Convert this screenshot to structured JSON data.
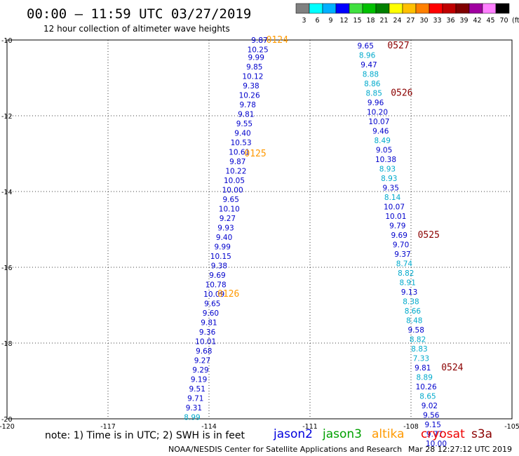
{
  "header": {
    "title": "00:00 – 11:59 UTC 03/27/2019",
    "subtitle": "12 hour collection of altimeter wave heights"
  },
  "colorbar": {
    "colors": [
      "#808080",
      "#00ffff",
      "#00b0ff",
      "#0000ff",
      "#40e040",
      "#00c000",
      "#008000",
      "#ffff00",
      "#ffc000",
      "#ff8000",
      "#ff0000",
      "#c00000",
      "#800000",
      "#a000a0",
      "#ff80ff",
      "#000000"
    ],
    "labels": [
      "3",
      "6",
      "9",
      "12",
      "15",
      "18",
      "21",
      "24",
      "27",
      "30",
      "33",
      "36",
      "39",
      "42",
      "45",
      "70"
    ],
    "unit": "(ft)"
  },
  "note": "note:  1) Time is in UTC; 2) SWH is in feet",
  "legend": [
    {
      "label": "jason2",
      "color": "#0000dd"
    },
    {
      "label": "jason3",
      "color": "#00a000"
    },
    {
      "label": "altika",
      "color": "#ff9900"
    },
    {
      "label": "cryosat",
      "color": "#ee0000"
    },
    {
      "label": "s3a",
      "color": "#8b0000"
    }
  ],
  "footer": {
    "credit": "NOAA/NESDIS Center for Satellite Applications and Research",
    "timestamp": "Mar 28 12:27:12 UTC 2019"
  },
  "chart_data": {
    "type": "scatter",
    "title": "00:00 – 11:59 UTC 03/27/2019",
    "subtitle": "12 hour collection of altimeter wave heights",
    "xlabel": "",
    "ylabel": "",
    "xlim": [
      -120,
      -105
    ],
    "ylim": [
      -20,
      -10
    ],
    "grid": true,
    "x_ticks": [
      "-120",
      "-117",
      "-114",
      "-111",
      "-108",
      "-105"
    ],
    "y_ticks": [
      "-10",
      "-12",
      "-14",
      "-16",
      "-18",
      "-20"
    ],
    "series": [
      {
        "name": "altika",
        "points": [
          {
            "x": -112.5,
            "y": -10.0,
            "v": "9.87",
            "c": "#0000cc"
          },
          {
            "x": -112.55,
            "y": -10.25,
            "v": "10.25",
            "c": "#0000cc"
          },
          {
            "x": -112.6,
            "y": -10.45,
            "v": "9.99",
            "c": "#0000cc"
          },
          {
            "x": -112.65,
            "y": -10.7,
            "v": "9.85",
            "c": "#0000cc"
          },
          {
            "x": -112.7,
            "y": -10.95,
            "v": "10.12",
            "c": "#0000cc"
          },
          {
            "x": -112.75,
            "y": -11.2,
            "v": "9.38",
            "c": "#0000cc"
          },
          {
            "x": -112.8,
            "y": -11.45,
            "v": "10.26",
            "c": "#0000cc"
          },
          {
            "x": -112.85,
            "y": -11.7,
            "v": "9.78",
            "c": "#0000cc"
          },
          {
            "x": -112.9,
            "y": -11.95,
            "v": "9.81",
            "c": "#0000cc"
          },
          {
            "x": -112.95,
            "y": -12.2,
            "v": "9.55",
            "c": "#0000cc"
          },
          {
            "x": -113.0,
            "y": -12.45,
            "v": "9.40",
            "c": "#0000cc"
          },
          {
            "x": -113.05,
            "y": -12.7,
            "v": "10.53",
            "c": "#0000cc"
          },
          {
            "x": -113.1,
            "y": -12.95,
            "v": "10.61",
            "c": "#0000cc"
          },
          {
            "x": -113.15,
            "y": -13.2,
            "v": "9.87",
            "c": "#0000cc"
          },
          {
            "x": -113.2,
            "y": -13.45,
            "v": "10.22",
            "c": "#0000cc"
          },
          {
            "x": -113.25,
            "y": -13.7,
            "v": "10.05",
            "c": "#0000cc"
          },
          {
            "x": -113.3,
            "y": -13.95,
            "v": "10.00",
            "c": "#0000cc"
          },
          {
            "x": -113.35,
            "y": -14.2,
            "v": "9.65",
            "c": "#0000cc"
          },
          {
            "x": -113.4,
            "y": -14.45,
            "v": "10.10",
            "c": "#0000cc"
          },
          {
            "x": -113.45,
            "y": -14.7,
            "v": "9.27",
            "c": "#0000cc"
          },
          {
            "x": -113.5,
            "y": -14.95,
            "v": "9.93",
            "c": "#0000cc"
          },
          {
            "x": -113.55,
            "y": -15.2,
            "v": "9.40",
            "c": "#0000cc"
          },
          {
            "x": -113.6,
            "y": -15.45,
            "v": "9.99",
            "c": "#0000cc"
          },
          {
            "x": -113.65,
            "y": -15.7,
            "v": "10.15",
            "c": "#0000cc"
          },
          {
            "x": -113.7,
            "y": -15.95,
            "v": "9.38",
            "c": "#0000cc"
          },
          {
            "x": -113.75,
            "y": -16.2,
            "v": "9.69",
            "c": "#0000cc"
          },
          {
            "x": -113.8,
            "y": -16.45,
            "v": "10.78",
            "c": "#0000cc"
          },
          {
            "x": -113.85,
            "y": -16.7,
            "v": "10.09",
            "c": "#0000cc"
          },
          {
            "x": -113.9,
            "y": -16.95,
            "v": "9.65",
            "c": "#0000cc"
          },
          {
            "x": -113.95,
            "y": -17.2,
            "v": "9.60",
            "c": "#0000cc"
          },
          {
            "x": -114.0,
            "y": -17.45,
            "v": "9.81",
            "c": "#0000cc"
          },
          {
            "x": -114.05,
            "y": -17.7,
            "v": "9.36",
            "c": "#0000cc"
          },
          {
            "x": -114.1,
            "y": -17.95,
            "v": "10.01",
            "c": "#0000cc"
          },
          {
            "x": -114.15,
            "y": -18.2,
            "v": "9.68",
            "c": "#0000cc"
          },
          {
            "x": -114.2,
            "y": -18.45,
            "v": "9.27",
            "c": "#0000cc"
          },
          {
            "x": -114.25,
            "y": -18.7,
            "v": "9.29",
            "c": "#0000cc"
          },
          {
            "x": -114.3,
            "y": -18.95,
            "v": "9.19",
            "c": "#0000cc"
          },
          {
            "x": -114.35,
            "y": -19.2,
            "v": "9.51",
            "c": "#0000cc"
          },
          {
            "x": -114.4,
            "y": -19.45,
            "v": "9.71",
            "c": "#0000cc"
          },
          {
            "x": -114.45,
            "y": -19.7,
            "v": "9.31",
            "c": "#0000cc"
          },
          {
            "x": -114.5,
            "y": -19.95,
            "v": "8.99",
            "c": "#00aacc"
          }
        ],
        "passes": [
          {
            "x": -112.3,
            "y": -10.0,
            "label": "0124",
            "c": "#ff9900"
          },
          {
            "x": -112.95,
            "y": -13.0,
            "label": "0125",
            "c": "#ff9900"
          },
          {
            "x": -113.75,
            "y": -16.7,
            "label": "0126",
            "c": "#ff9900"
          }
        ]
      },
      {
        "name": "s3a",
        "points": [
          {
            "x": -109.35,
            "y": -10.15,
            "v": "9.65",
            "c": "#0000cc"
          },
          {
            "x": -109.3,
            "y": -10.4,
            "v": "8.96",
            "c": "#00aacc"
          },
          {
            "x": -109.25,
            "y": -10.65,
            "v": "9.47",
            "c": "#0000cc"
          },
          {
            "x": -109.2,
            "y": -10.9,
            "v": "8.88",
            "c": "#00aacc"
          },
          {
            "x": -109.15,
            "y": -11.15,
            "v": "8.86",
            "c": "#00aacc"
          },
          {
            "x": -109.1,
            "y": -11.4,
            "v": "8.85",
            "c": "#00aacc"
          },
          {
            "x": -109.05,
            "y": -11.65,
            "v": "9.96",
            "c": "#0000cc"
          },
          {
            "x": -109.0,
            "y": -11.9,
            "v": "10.20",
            "c": "#0000cc"
          },
          {
            "x": -108.95,
            "y": -12.15,
            "v": "10.07",
            "c": "#0000cc"
          },
          {
            "x": -108.9,
            "y": -12.4,
            "v": "9.46",
            "c": "#0000cc"
          },
          {
            "x": -108.85,
            "y": -12.65,
            "v": "8.49",
            "c": "#00aacc"
          },
          {
            "x": -108.8,
            "y": -12.9,
            "v": "9.05",
            "c": "#0000cc"
          },
          {
            "x": -108.75,
            "y": -13.15,
            "v": "10.38",
            "c": "#0000cc"
          },
          {
            "x": -108.7,
            "y": -13.4,
            "v": "8.93",
            "c": "#00aacc"
          },
          {
            "x": -108.65,
            "y": -13.65,
            "v": "8.93",
            "c": "#00aacc"
          },
          {
            "x": -108.6,
            "y": -13.9,
            "v": "9.35",
            "c": "#0000cc"
          },
          {
            "x": -108.55,
            "y": -14.15,
            "v": "8.14",
            "c": "#00aacc"
          },
          {
            "x": -108.5,
            "y": -14.4,
            "v": "10.07",
            "c": "#0000cc"
          },
          {
            "x": -108.45,
            "y": -14.65,
            "v": "10.01",
            "c": "#0000cc"
          },
          {
            "x": -108.4,
            "y": -14.9,
            "v": "9.79",
            "c": "#0000cc"
          },
          {
            "x": -108.35,
            "y": -15.15,
            "v": "9.69",
            "c": "#0000cc"
          },
          {
            "x": -108.3,
            "y": -15.4,
            "v": "9.70",
            "c": "#0000cc"
          },
          {
            "x": -108.25,
            "y": -15.65,
            "v": "9.37",
            "c": "#0000cc"
          },
          {
            "x": -108.2,
            "y": -15.9,
            "v": "8.74",
            "c": "#00aacc"
          },
          {
            "x": -108.15,
            "y": -16.15,
            "v": "8.82",
            "c": "#00aacc"
          },
          {
            "x": -108.1,
            "y": -16.4,
            "v": "8.91",
            "c": "#00aacc"
          },
          {
            "x": -108.05,
            "y": -16.65,
            "v": "9.13",
            "c": "#0000cc"
          },
          {
            "x": -108.0,
            "y": -16.9,
            "v": "8.38",
            "c": "#00aacc"
          },
          {
            "x": -107.95,
            "y": -17.15,
            "v": "8.66",
            "c": "#00aacc"
          },
          {
            "x": -107.9,
            "y": -17.4,
            "v": "8.48",
            "c": "#00aacc"
          },
          {
            "x": -107.85,
            "y": -17.65,
            "v": "9.58",
            "c": "#0000cc"
          },
          {
            "x": -107.8,
            "y": -17.9,
            "v": "8.82",
            "c": "#00aacc"
          },
          {
            "x": -107.75,
            "y": -18.15,
            "v": "8.83",
            "c": "#00aacc"
          },
          {
            "x": -107.7,
            "y": -18.4,
            "v": "7.33",
            "c": "#00aacc"
          },
          {
            "x": -107.65,
            "y": -18.65,
            "v": "9.81",
            "c": "#0000cc"
          },
          {
            "x": -107.6,
            "y": -18.9,
            "v": "8.89",
            "c": "#00aacc"
          },
          {
            "x": -107.55,
            "y": -19.15,
            "v": "10.26",
            "c": "#0000cc"
          },
          {
            "x": -107.5,
            "y": -19.4,
            "v": "8.65",
            "c": "#00aacc"
          },
          {
            "x": -107.45,
            "y": -19.65,
            "v": "9.02",
            "c": "#0000cc"
          },
          {
            "x": -107.4,
            "y": -19.9,
            "v": "9.56",
            "c": "#0000cc"
          },
          {
            "x": -107.35,
            "y": -20.15,
            "v": "9.15",
            "c": "#0000cc"
          },
          {
            "x": -107.3,
            "y": -20.4,
            "v": "9.77",
            "c": "#0000cc"
          },
          {
            "x": -107.25,
            "y": -20.65,
            "v": "10.00",
            "c": "#0000cc"
          }
        ],
        "passes": [
          {
            "x": -108.7,
            "y": -10.15,
            "label": "0527",
            "c": "#8b0000"
          },
          {
            "x": -108.6,
            "y": -11.4,
            "label": "0526",
            "c": "#8b0000"
          },
          {
            "x": -107.8,
            "y": -15.15,
            "label": "0525",
            "c": "#8b0000"
          },
          {
            "x": -107.1,
            "y": -18.65,
            "label": "0524",
            "c": "#8b0000"
          }
        ]
      }
    ]
  }
}
